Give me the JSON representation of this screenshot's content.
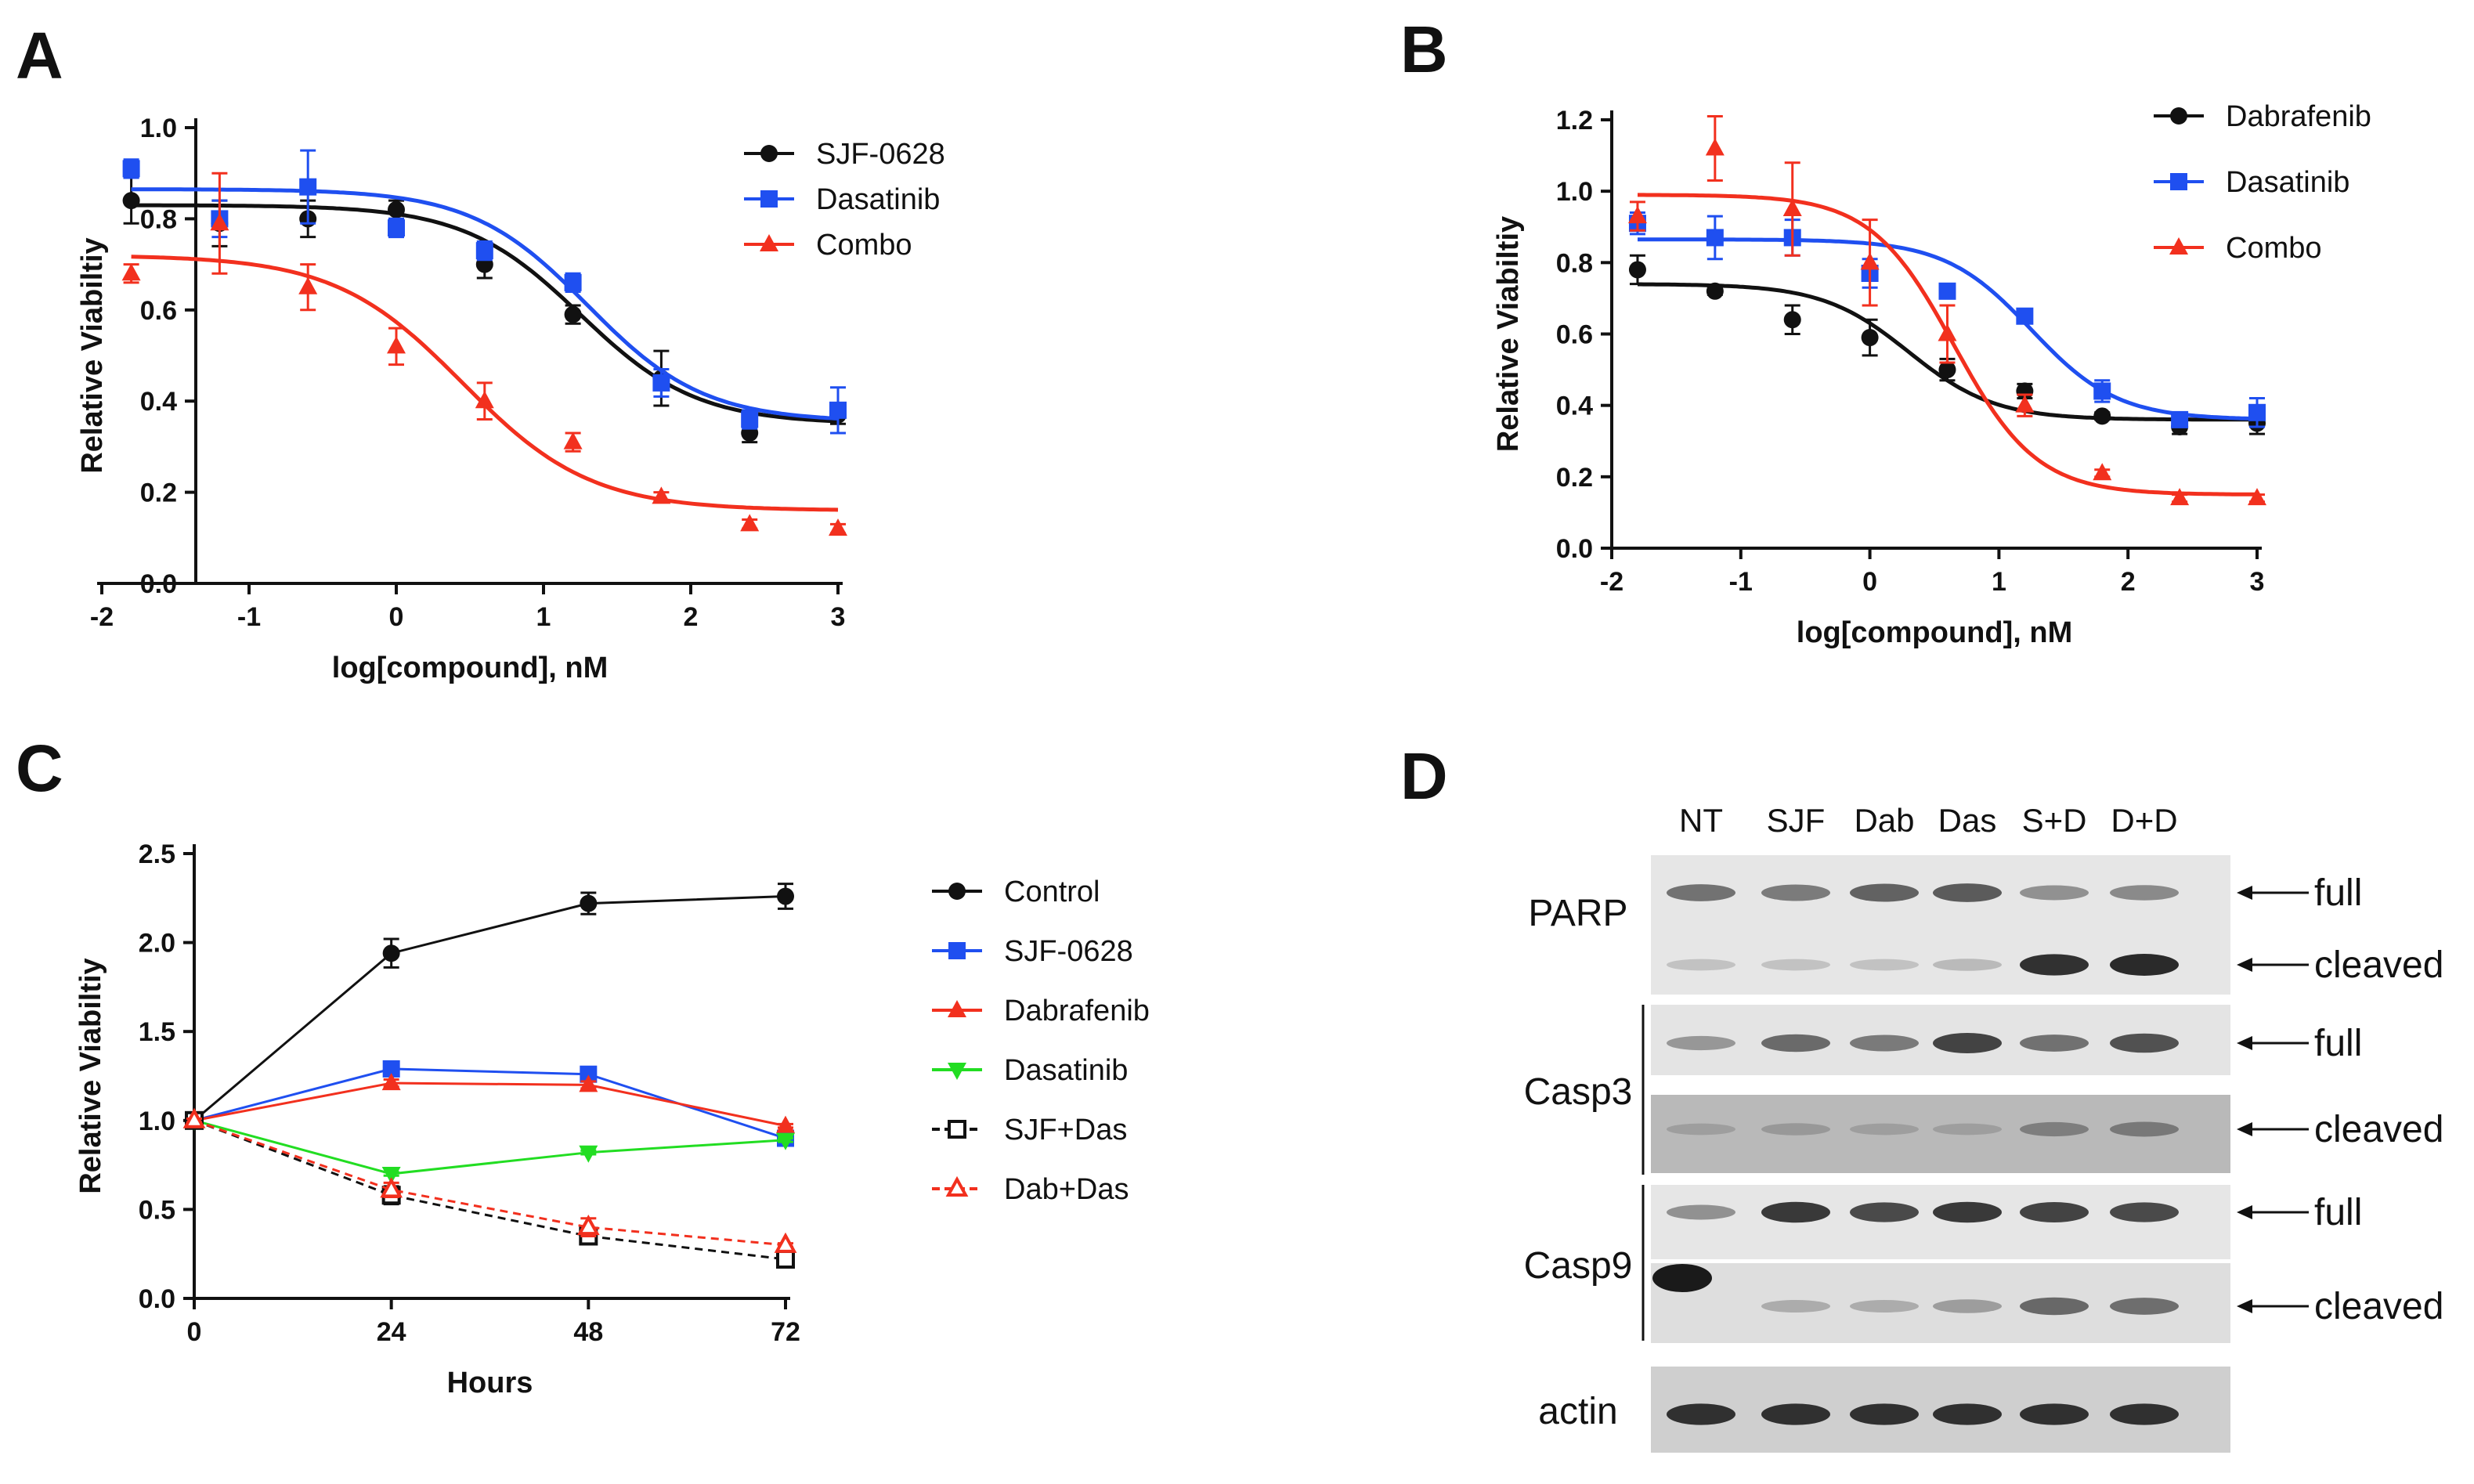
{
  "colors": {
    "black": "#111111",
    "blue": "#1f4ff0",
    "red": "#f2301e",
    "green": "#22dd22",
    "blot_band": "#2a2a2a"
  },
  "panels": {
    "A": {
      "letter": "A"
    },
    "B": {
      "letter": "B"
    },
    "C": {
      "letter": "C"
    },
    "D": {
      "letter": "D"
    }
  },
  "chart_data": [
    {
      "panel": "A",
      "type": "scatter",
      "xlabel": "log[compound], nM",
      "ylabel": "Relative Viabiltiy",
      "xlim": [
        -2,
        3
      ],
      "ylim": [
        0,
        1.0
      ],
      "xticks": [
        -2,
        -1,
        0,
        1,
        2,
        3
      ],
      "yticks": [
        0.0,
        0.2,
        0.4,
        0.6,
        0.8,
        1.0
      ],
      "x": [
        -1.8,
        -1.2,
        -0.6,
        0.0,
        0.6,
        1.2,
        1.8,
        2.4,
        3.0
      ],
      "legend": "top-right",
      "series": [
        {
          "name": "SJF-0628",
          "color": "black",
          "marker": "circle",
          "values": [
            0.84,
            0.79,
            0.8,
            0.82,
            0.7,
            0.59,
            0.45,
            0.33,
            0.37
          ],
          "errors": [
            0.05,
            0.05,
            0.04,
            0.02,
            0.03,
            0.02,
            0.06,
            0.02,
            0.02
          ],
          "fit": {
            "top": 0.83,
            "bottom": 0.35,
            "logIC50": 1.25,
            "hill": 1.1
          }
        },
        {
          "name": "Dasatinib",
          "color": "blue",
          "marker": "square",
          "values": [
            0.91,
            0.8,
            0.87,
            0.78,
            0.73,
            0.66,
            0.44,
            0.36,
            0.38
          ],
          "errors": [
            0.02,
            0.04,
            0.08,
            0.02,
            0.02,
            0.02,
            0.03,
            0.02,
            0.05
          ],
          "fit": {
            "top": 0.865,
            "bottom": 0.355,
            "logIC50": 1.3,
            "hill": 1.1
          }
        },
        {
          "name": "Combo",
          "color": "red",
          "marker": "triangle",
          "values": [
            0.68,
            0.79,
            0.65,
            0.52,
            0.4,
            0.31,
            0.19,
            0.13,
            0.12
          ],
          "errors": [
            0.02,
            0.11,
            0.05,
            0.04,
            0.04,
            0.02,
            0.01,
            0.01,
            0.01
          ],
          "fit": {
            "top": 0.72,
            "bottom": 0.16,
            "logIC50": 0.45,
            "hill": 1.0
          }
        }
      ]
    },
    {
      "panel": "B",
      "type": "scatter",
      "xlabel": "log[compound], nM",
      "ylabel": "Relative Viabiltiy",
      "xlim": [
        -2,
        3
      ],
      "ylim": [
        0,
        1.2
      ],
      "xticks": [
        -2,
        -1,
        0,
        1,
        2,
        3
      ],
      "yticks": [
        0.0,
        0.2,
        0.4,
        0.6,
        0.8,
        1.0,
        1.2
      ],
      "x": [
        -1.8,
        -1.2,
        -0.6,
        0.0,
        0.6,
        1.2,
        1.8,
        2.4,
        3.0
      ],
      "legend": "top-right",
      "series": [
        {
          "name": "Dabrafenib",
          "color": "black",
          "marker": "circle",
          "values": [
            0.78,
            0.72,
            0.64,
            0.59,
            0.5,
            0.44,
            0.37,
            0.34,
            0.35
          ],
          "errors": [
            0.04,
            0.01,
            0.04,
            0.05,
            0.03,
            0.02,
            0.01,
            0.02,
            0.03
          ],
          "fit": {
            "top": 0.74,
            "bottom": 0.36,
            "logIC50": 0.3,
            "hill": 1.3
          }
        },
        {
          "name": "Dasatinib",
          "color": "blue",
          "marker": "square",
          "values": [
            0.91,
            0.87,
            0.87,
            0.77,
            0.72,
            0.65,
            0.44,
            0.36,
            0.38
          ],
          "errors": [
            0.03,
            0.06,
            0.05,
            0.04,
            0.02,
            0.02,
            0.03,
            0.02,
            0.04
          ],
          "fit": {
            "top": 0.865,
            "bottom": 0.36,
            "logIC50": 1.25,
            "hill": 1.3
          }
        },
        {
          "name": "Combo",
          "color": "red",
          "marker": "triangle",
          "values": [
            0.93,
            1.12,
            0.95,
            0.8,
            0.6,
            0.4,
            0.21,
            0.14,
            0.14
          ],
          "errors": [
            0.04,
            0.09,
            0.13,
            0.12,
            0.08,
            0.03,
            0.01,
            0.01,
            0.01
          ],
          "fit": {
            "top": 0.99,
            "bottom": 0.15,
            "logIC50": 0.65,
            "hill": 1.35
          }
        }
      ]
    },
    {
      "panel": "C",
      "type": "line",
      "xlabel": "Hours",
      "ylabel": "Relative Viabiltiy",
      "xlim": [
        0,
        72
      ],
      "ylim": [
        0,
        2.5
      ],
      "xticks": [
        0,
        24,
        48,
        72
      ],
      "yticks": [
        0.0,
        0.5,
        1.0,
        1.5,
        2.0,
        2.5
      ],
      "x": [
        0,
        24,
        48,
        72
      ],
      "legend": "right",
      "series": [
        {
          "name": "Control",
          "color": "black",
          "marker": "circle",
          "values": [
            1.0,
            1.94,
            2.22,
            2.26
          ],
          "errors": [
            0.02,
            0.08,
            0.06,
            0.07
          ]
        },
        {
          "name": "SJF-0628",
          "color": "blue",
          "marker": "square",
          "values": [
            1.0,
            1.29,
            1.26,
            0.9
          ],
          "errors": [
            0.01,
            0.02,
            0.02,
            0.02
          ]
        },
        {
          "name": "Dabrafenib",
          "color": "red",
          "marker": "triangle",
          "values": [
            1.0,
            1.21,
            1.2,
            0.97
          ],
          "errors": [
            0.01,
            0.02,
            0.02,
            0.01
          ]
        },
        {
          "name": "Dasatinib",
          "color": "green",
          "marker": "triangle-down",
          "values": [
            1.0,
            0.7,
            0.82,
            0.89
          ],
          "errors": [
            0.01,
            0.01,
            0.01,
            0.01
          ]
        },
        {
          "name": "SJF+Das",
          "color": "black",
          "marker": "open-square",
          "dashed": true,
          "values": [
            1.0,
            0.58,
            0.35,
            0.22
          ],
          "errors": [
            0.01,
            0.05,
            0.03,
            0.02
          ]
        },
        {
          "name": "Dab+Das",
          "color": "red",
          "marker": "open-triangle",
          "dashed": true,
          "values": [
            1.0,
            0.61,
            0.4,
            0.3
          ],
          "errors": [
            0.01,
            0.04,
            0.05,
            0.01
          ]
        }
      ]
    }
  ],
  "blot": {
    "lanes": [
      "NT",
      "SJF",
      "Dab",
      "Das",
      "S+D",
      "D+D"
    ],
    "proteins": {
      "parp": "PARP",
      "casp3": "Casp3",
      "casp9": "Casp9",
      "actin": "actin"
    },
    "arrow_labels": {
      "full": "full",
      "cleaved": "cleaved"
    },
    "strips": [
      {
        "id": "parp",
        "bands": [
          {
            "level": "full",
            "intensity": [
              0.55,
              0.5,
              0.65,
              0.7,
              0.35,
              0.4
            ]
          },
          {
            "level": "cleaved",
            "intensity": [
              0.05,
              0.05,
              0.05,
              0.1,
              0.95,
              1.0
            ]
          }
        ]
      },
      {
        "id": "casp3-full",
        "bands": [
          {
            "level": "full",
            "intensity": [
              0.3,
              0.6,
              0.5,
              0.85,
              0.55,
              0.75
            ]
          }
        ]
      },
      {
        "id": "casp3-cleaved",
        "bands": [
          {
            "level": "cleaved",
            "intensity": [
              0.05,
              0.1,
              0.05,
              0.05,
              0.3,
              0.35
            ]
          }
        ]
      },
      {
        "id": "casp9-full",
        "bands": [
          {
            "level": "full",
            "intensity": [
              0.35,
              0.9,
              0.8,
              0.9,
              0.85,
              0.8
            ]
          }
        ]
      },
      {
        "id": "casp9-cleaved",
        "bands": [
          {
            "level": "cleaved",
            "intensity": [
              0.0,
              0.15,
              0.15,
              0.25,
              0.6,
              0.55
            ]
          }
        ]
      },
      {
        "id": "actin",
        "bands": [
          {
            "level": "actin",
            "intensity": [
              0.95,
              0.95,
              0.95,
              0.95,
              0.95,
              0.95
            ]
          }
        ]
      }
    ]
  }
}
